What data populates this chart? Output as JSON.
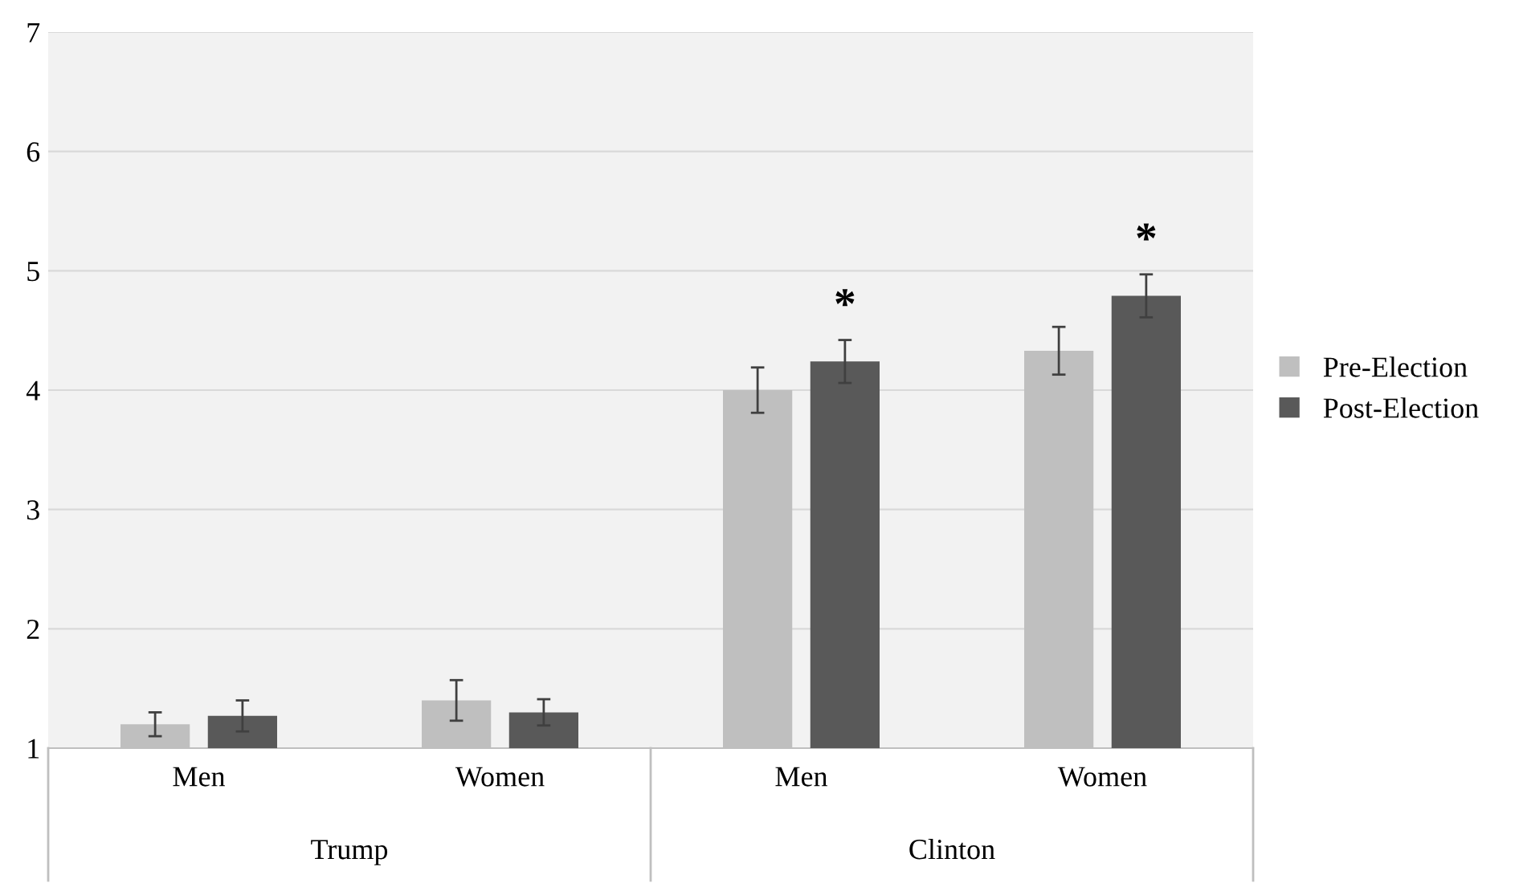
{
  "chart_data": {
    "type": "bar",
    "categories": [
      "Men",
      "Women",
      "Men",
      "Women"
    ],
    "series": [
      {
        "name": "Pre-Election",
        "color": "#bfbfbf",
        "values": [
          1.2,
          1.4,
          4.0,
          4.33
        ],
        "errors": [
          0.1,
          0.17,
          0.19,
          0.2
        ]
      },
      {
        "name": "Post-Election",
        "color": "#595959",
        "values": [
          1.27,
          1.3,
          4.24,
          4.79
        ],
        "errors": [
          0.13,
          0.11,
          0.18,
          0.18
        ]
      }
    ],
    "ylim": [
      1,
      7
    ],
    "yticks": [
      1,
      2,
      3,
      4,
      5,
      6,
      7
    ],
    "grid": "y",
    "legend": "right",
    "annotations": [
      "Trump",
      "Clinton",
      "*",
      "*"
    ]
  }
}
